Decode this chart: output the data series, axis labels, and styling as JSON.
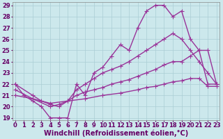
{
  "xlabel": "Windchill (Refroidissement éolien,°C)",
  "background_color": "#cce8ec",
  "line_color": "#993399",
  "grid_color": "#aacdd4",
  "xlim": [
    0,
    23
  ],
  "ylim": [
    19,
    29
  ],
  "yticks": [
    19,
    20,
    21,
    22,
    23,
    24,
    25,
    26,
    27,
    28,
    29
  ],
  "xticks": [
    0,
    1,
    2,
    3,
    4,
    5,
    6,
    7,
    8,
    9,
    10,
    11,
    12,
    13,
    14,
    15,
    16,
    17,
    18,
    19,
    20,
    21,
    22,
    23
  ],
  "line1_x": [
    0,
    1,
    2,
    3,
    4,
    5,
    6,
    7,
    8,
    9,
    10,
    11,
    12,
    13,
    14,
    15,
    16,
    17,
    18,
    19,
    20,
    21,
    22,
    23
  ],
  "line1_y": [
    22,
    21,
    20.5,
    20,
    19,
    19,
    19,
    22,
    21,
    23,
    23.5,
    24.5,
    25.5,
    25,
    27,
    28.5,
    29,
    29,
    28,
    28.5,
    26,
    25,
    22,
    22
  ],
  "line2_x": [
    0,
    2,
    3,
    4,
    5,
    6,
    7,
    8,
    9,
    10,
    11,
    12,
    13,
    14,
    15,
    16,
    17,
    18,
    19,
    20,
    21,
    22,
    23
  ],
  "line2_y": [
    22,
    21,
    20.5,
    20.2,
    20,
    20.5,
    21.5,
    22,
    22.5,
    23,
    23.3,
    23.6,
    24,
    24.5,
    25,
    25.5,
    26,
    26.5,
    26,
    25,
    24,
    23,
    22
  ],
  "line3_x": [
    0,
    2,
    4,
    5,
    6,
    7,
    8,
    9,
    10,
    11,
    12,
    13,
    14,
    15,
    16,
    17,
    18,
    19,
    20,
    21,
    22,
    23
  ],
  "line3_y": [
    21.5,
    20.7,
    20,
    20.2,
    20.5,
    21,
    21.3,
    21.5,
    21.7,
    22,
    22.2,
    22.4,
    22.7,
    23,
    23.3,
    23.7,
    24,
    24,
    24.5,
    25,
    25,
    22
  ],
  "line4_x": [
    0,
    2,
    4,
    6,
    8,
    10,
    12,
    14,
    15,
    16,
    17,
    18,
    19,
    20,
    21,
    22,
    23
  ],
  "line4_y": [
    21,
    20.7,
    20.3,
    20.5,
    20.7,
    21,
    21.2,
    21.5,
    21.7,
    21.8,
    22,
    22.2,
    22.3,
    22.5,
    22.5,
    21.8,
    21.8
  ],
  "marker": "+",
  "markersize": 4,
  "linewidth": 1.0,
  "tick_fontsize": 6,
  "xlabel_fontsize": 7
}
